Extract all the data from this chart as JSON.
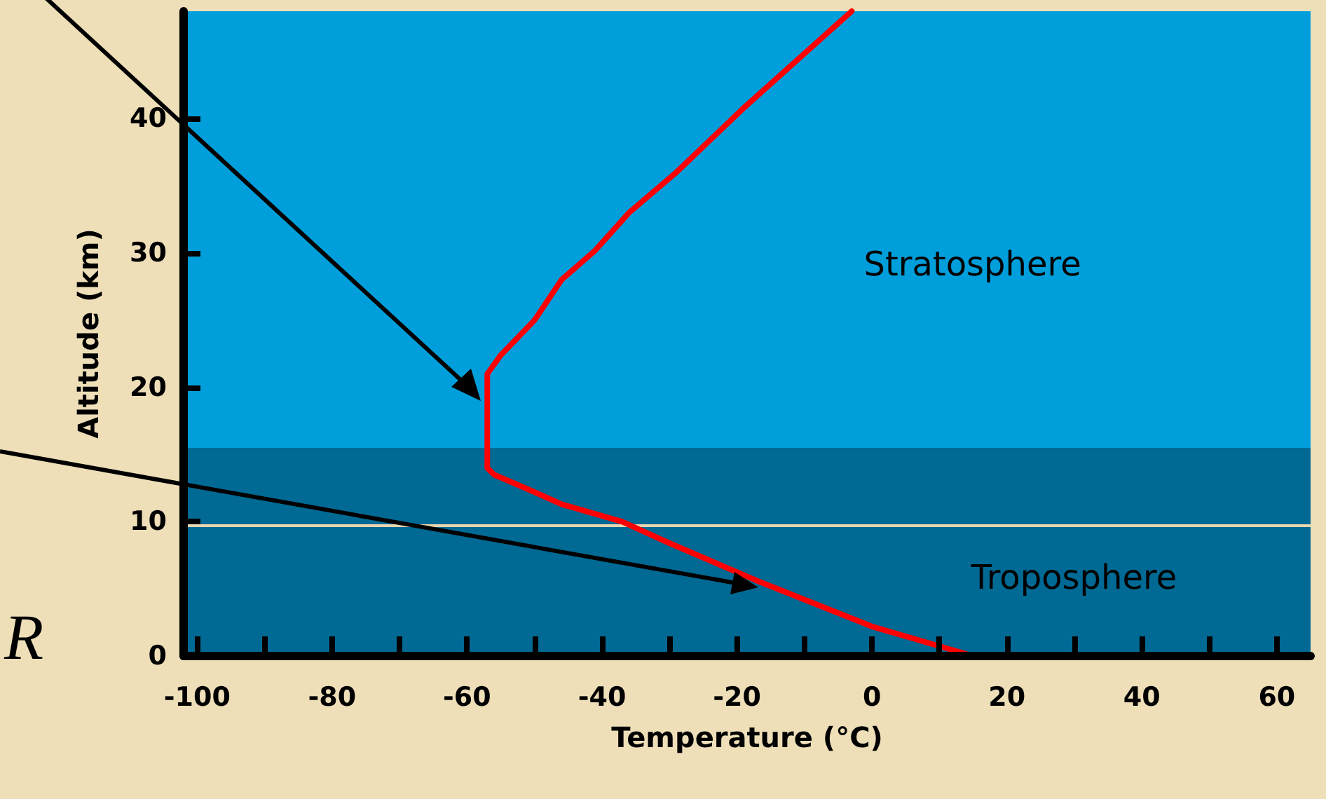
{
  "chart_data": {
    "type": "line",
    "xlabel": "Temperature (°C)",
    "ylabel": "Altitude (km)",
    "series": [
      {
        "color": "#ff0000",
        "x": [
          15,
          0,
          -17,
          -30,
          -37,
          -46,
          -50,
          -56,
          -57,
          -57,
          -55,
          -50,
          -46,
          -41,
          -36,
          -29,
          -19,
          -3
        ],
        "values": [
          0,
          2.2,
          5.6,
          8.4,
          10,
          11.3,
          12.2,
          13.5,
          14,
          21,
          22.4,
          25,
          28,
          30.2,
          33,
          36,
          40.8,
          48
        ]
      }
    ],
    "xlim": [
      -102,
      65
    ],
    "xticks": [
      -100,
      {
        "value": -90,
        "label": null
      },
      -80,
      {
        "value": -70,
        "label": null
      },
      -60,
      {
        "value": -50,
        "label": null
      },
      -40,
      {
        "value": -30,
        "label": null
      },
      -20,
      {
        "value": -10,
        "label": null
      },
      0,
      {
        "value": 10,
        "label": null
      },
      20,
      {
        "value": 30,
        "label": null
      },
      40,
      {
        "value": 50,
        "label": null
      },
      60
    ],
    "ylim": [
      0,
      48
    ],
    "yticks": [
      0,
      10,
      20,
      30,
      40
    ],
    "bands": [
      {
        "axis": "y",
        "from": 0,
        "to": 9.7,
        "label": "Troposphere",
        "color": "#006994"
      },
      {
        "axis": "y",
        "from": 9.7,
        "to": 15.5,
        "color": "#006994"
      },
      {
        "axis": "y",
        "from": 15.5,
        "to": 48,
        "label": "Stratosphere",
        "color": "#009fdb"
      }
    ],
    "ref_lines": [
      {
        "axis": "y",
        "value": 9.7,
        "color": "#e6d6b0",
        "line_style": "solid"
      }
    ],
    "annotations": [
      "R"
    ],
    "marker": "none",
    "line_style": "solid"
  }
}
